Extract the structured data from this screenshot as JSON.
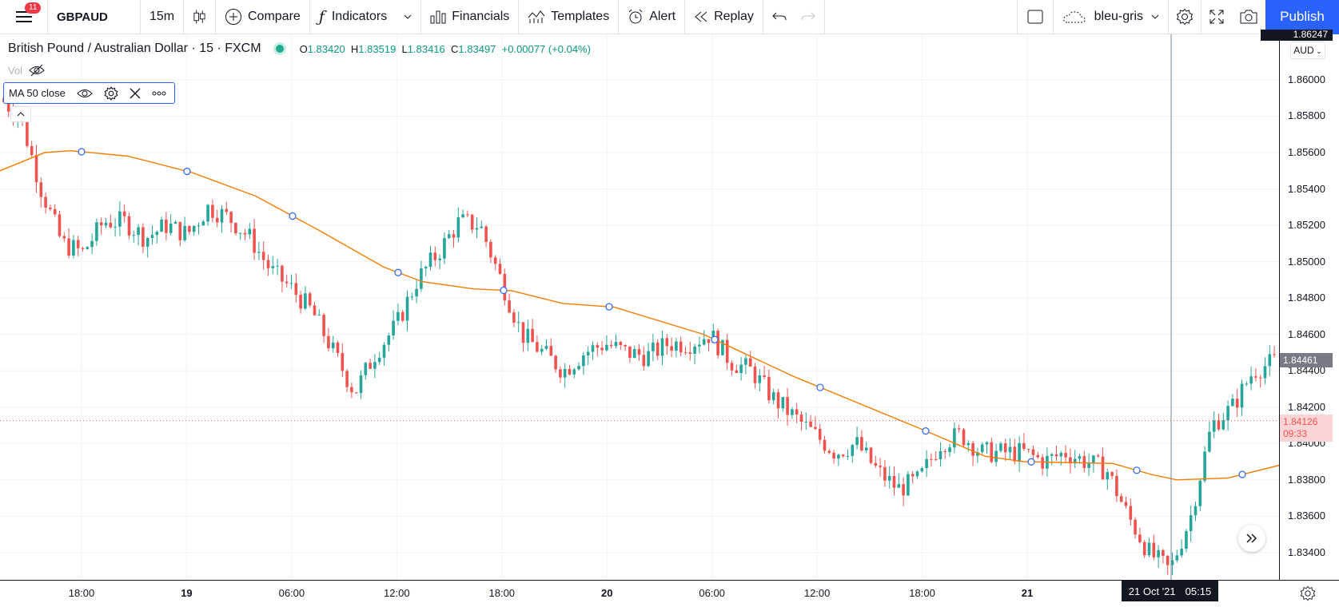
{
  "toolbar": {
    "menu_badge": "11",
    "symbol": "GBPAUD",
    "interval": "15m",
    "compare": "Compare",
    "indicators": "Indicators",
    "financials": "Financials",
    "templates": "Templates",
    "alert": "Alert",
    "replay": "Replay",
    "layout_name": "bleu-gris",
    "publish": "Publish"
  },
  "legend": {
    "title": "British Pound / Australian Dollar · 15 · FXCM",
    "o_label": "O",
    "o": "1.83420",
    "h_label": "H",
    "h": "1.83519",
    "l_label": "L",
    "l": "1.83416",
    "c_label": "C",
    "c": "1.83497",
    "change": "+0.00077 (+0.04%)"
  },
  "vol_label": "Vol",
  "indicator": {
    "label": "MA 50 close"
  },
  "currency": "AUD",
  "price_axis": [
    "1.86000",
    "1.85800",
    "1.85600",
    "1.85400",
    "1.85200",
    "1.85000",
    "1.84800",
    "1.84600",
    "1.84400",
    "1.84200",
    "1.84000",
    "1.83800",
    "1.83600",
    "1.83400"
  ],
  "price_axis_top_partial": "1.86247",
  "time_axis": [
    "18:00",
    "19",
    "06:00",
    "12:00",
    "18:00",
    "20",
    "06:00",
    "12:00",
    "18:00",
    "21"
  ],
  "crosshair_price": "1.84461",
  "last_price": {
    "value": "1.84126",
    "countdown": "09:33"
  },
  "crosshair_time": {
    "date": "21 Oct '21",
    "time": "05:15"
  },
  "colors": {
    "up": "#26a69a",
    "down": "#ef5350",
    "ma": "#f57c00",
    "accent": "#2962ff"
  },
  "chart_data": {
    "type": "candlestick",
    "symbol": "GBPAUD",
    "timeframe": "15",
    "ylim": [
      1.8325,
      1.8625
    ],
    "ma": {
      "name": "MA 50 close",
      "points": [
        [
          0,
          1.855
        ],
        [
          0.035,
          1.856
        ],
        [
          0.055,
          1.8561
        ],
        [
          0.1,
          1.8558
        ],
        [
          0.15,
          1.8549
        ],
        [
          0.2,
          1.8536
        ],
        [
          0.25,
          1.8517
        ],
        [
          0.3,
          1.8497
        ],
        [
          0.33,
          1.8489
        ],
        [
          0.37,
          1.8485
        ],
        [
          0.4,
          1.8484
        ],
        [
          0.44,
          1.8477
        ],
        [
          0.48,
          1.8475
        ],
        [
          0.55,
          1.846
        ],
        [
          0.62,
          1.8437
        ],
        [
          0.72,
          1.8408
        ],
        [
          0.77,
          1.8393
        ],
        [
          0.8,
          1.839
        ],
        [
          0.87,
          1.8389
        ],
        [
          0.9,
          1.8383
        ],
        [
          0.92,
          1.838
        ],
        [
          0.96,
          1.8381
        ],
        [
          1.0,
          1.8388
        ]
      ]
    },
    "price_path": [
      1.859,
      1.858,
      1.854,
      1.851,
      1.8505,
      1.8522,
      1.8522,
      1.8513,
      1.852,
      1.8515,
      1.853,
      1.8524,
      1.8513,
      1.8495,
      1.8485,
      1.8472,
      1.845,
      1.8428,
      1.845,
      1.8465,
      1.849,
      1.8505,
      1.8522,
      1.852,
      1.849,
      1.846,
      1.845,
      1.844,
      1.845,
      1.8455,
      1.845,
      1.8448,
      1.8455,
      1.8455,
      1.846,
      1.8445,
      1.844,
      1.8425,
      1.8415,
      1.8405,
      1.8395,
      1.84,
      1.8385,
      1.8375,
      1.838,
      1.84,
      1.8405,
      1.8395,
      1.8395,
      1.8395,
      1.839,
      1.8395,
      1.839,
      1.8385,
      1.836,
      1.834,
      1.833,
      1.836,
      1.841,
      1.842,
      1.844,
      1.8445
    ]
  }
}
